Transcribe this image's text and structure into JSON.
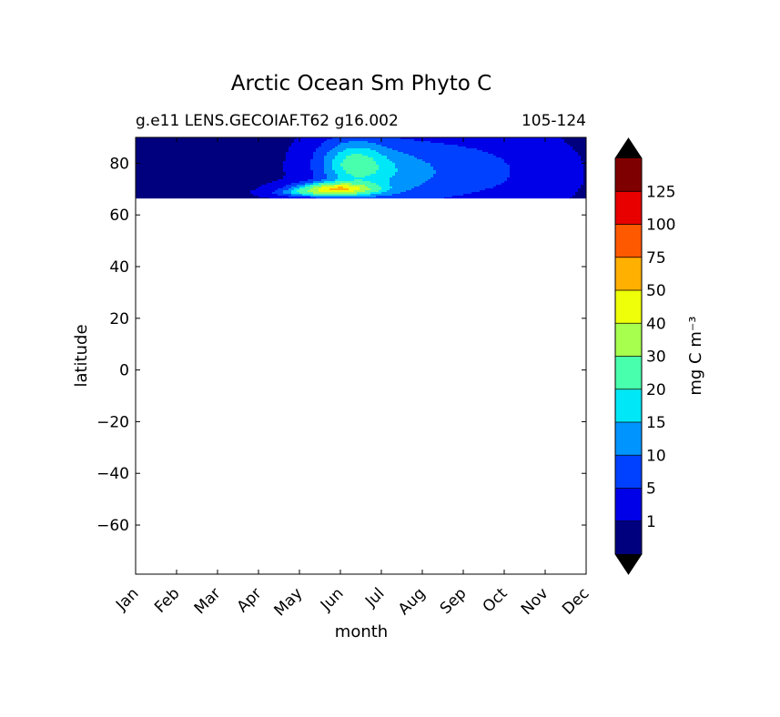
{
  "chart_data": {
    "type": "contourf",
    "title": "Arctic Ocean Sm Phyto C",
    "subtitle_left": "g.e11 LENS.GECOIAF.T62 g16.002",
    "subtitle_right": "105-124",
    "xlabel": "month",
    "ylabel": "latitude",
    "x_ticks": [
      "Jan",
      "Feb",
      "Mar",
      "Apr",
      "May",
      "Jun",
      "Jul",
      "Aug",
      "Sep",
      "Oct",
      "Nov",
      "Dec"
    ],
    "y_ticks": [
      80,
      60,
      40,
      20,
      0,
      -20,
      -40,
      -60
    ],
    "y_tick_labels": [
      "80",
      "60",
      "40",
      "20",
      "0",
      "−20",
      "−40",
      "−60"
    ],
    "ylim": [
      -79,
      90
    ],
    "data_extent_lat": [
      66.5,
      90
    ],
    "colorbar": {
      "label": "mg C m⁻³",
      "extend": "both",
      "levels": [
        1,
        5,
        10,
        15,
        20,
        30,
        40,
        50,
        75,
        100,
        125
      ],
      "tick_labels": [
        "1",
        "5",
        "10",
        "15",
        "20",
        "30",
        "40",
        "50",
        "75",
        "100",
        "125"
      ],
      "colors": [
        "#00007f",
        "#0000e8",
        "#0040ff",
        "#0094ff",
        "#00e8f7",
        "#48ffae",
        "#a7ff4e",
        "#eeff09",
        "#ffb000",
        "#ff5900",
        "#e80000",
        "#7f0000"
      ],
      "under_color": "#000000",
      "over_color": "#000000"
    },
    "field_description": "Small phytoplankton carbon is below 1 mg C m-3 most of the year; a bloom spreads north from ~67N in April, peaking near 70N in late May to June at 30-75 mg C m-3, with 10-20 mg C m-3 across high latitudes through July, decaying to 1-5 by October."
  }
}
